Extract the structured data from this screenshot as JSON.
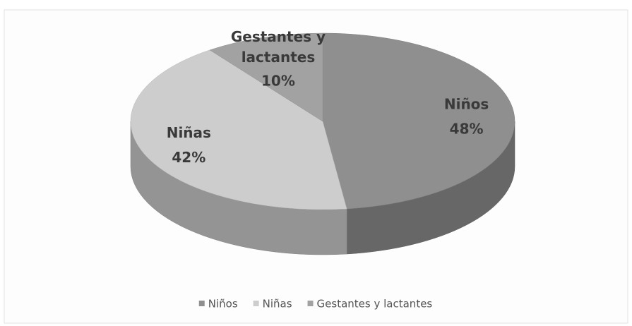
{
  "chart_data": {
    "type": "pie3d",
    "categories": [
      "Niños",
      "Niñas",
      "Gestantes y lactantes"
    ],
    "values": [
      48,
      42,
      10
    ],
    "value_labels": [
      "48%",
      "42%",
      "10%"
    ],
    "colors": [
      "#8f8f8f",
      "#cdcdcd",
      "#a2a2a2"
    ],
    "legend": "bottom"
  }
}
